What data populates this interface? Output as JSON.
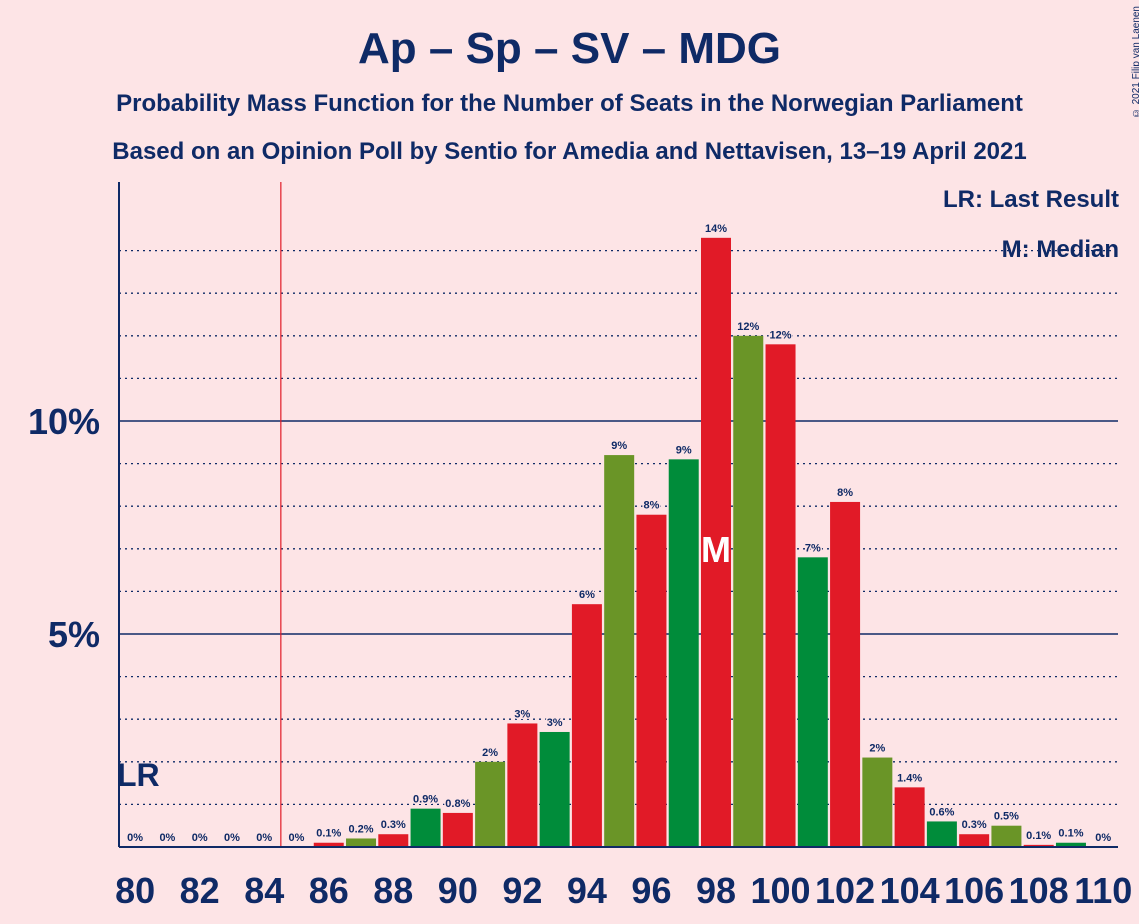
{
  "header": {
    "title": "Ap – Sp – SV – MDG",
    "subtitle_1": "Probability Mass Function for the Number of Seats in the Norwegian Parliament",
    "subtitle_2": "Based on an Opinion Poll by Sentio for Amedia and Nettavisen, 13–19 April 2021",
    "copyright": "© 2021 Filip van Laenen"
  },
  "legend": {
    "last_result": "LR: Last Result",
    "median": "M: Median"
  },
  "markers": {
    "last_result_label": "LR",
    "median_label": "M",
    "last_result_seats": 85,
    "median_seats": 98
  },
  "colors": {
    "background": "#FDE4E6",
    "text": "#0F2A66",
    "red": "#E11A27",
    "green_dark": "#008C3A",
    "green_olive": "#6A9527",
    "last_result_line": "#E11A27"
  },
  "chart_data": {
    "type": "bar",
    "xlabel": "",
    "ylabel": "",
    "ylim": [
      0,
      15.5
    ],
    "yticks": [
      {
        "value": 5,
        "label": "5%"
      },
      {
        "value": 10,
        "label": "10%"
      }
    ],
    "xticks": [
      80,
      82,
      84,
      86,
      88,
      90,
      92,
      94,
      96,
      98,
      100,
      102,
      104,
      106,
      108,
      110
    ],
    "bars": [
      {
        "seats": 80,
        "value": 0,
        "label": "0%",
        "color": "red"
      },
      {
        "seats": 81,
        "value": 0,
        "label": "0%",
        "color": "green_dark"
      },
      {
        "seats": 82,
        "value": 0,
        "label": "0%",
        "color": "green_olive"
      },
      {
        "seats": 83,
        "value": 0,
        "label": "0%",
        "color": "red"
      },
      {
        "seats": 84,
        "value": 0,
        "label": "0%",
        "color": "green_dark"
      },
      {
        "seats": 85,
        "value": 0,
        "label": "0%",
        "color": "green_olive"
      },
      {
        "seats": 86,
        "value": 0.1,
        "label": "0.1%",
        "color": "red"
      },
      {
        "seats": 87,
        "value": 0.2,
        "label": "0.2%",
        "color": "green_olive"
      },
      {
        "seats": 88,
        "value": 0.3,
        "label": "0.3%",
        "color": "red"
      },
      {
        "seats": 89,
        "value": 0.9,
        "label": "0.9%",
        "color": "green_dark"
      },
      {
        "seats": 90,
        "value": 0.8,
        "label": "0.8%",
        "color": "red"
      },
      {
        "seats": 91,
        "value": 2.0,
        "label": "2%",
        "color": "green_olive"
      },
      {
        "seats": 92,
        "value": 2.9,
        "label": "3%",
        "color": "red"
      },
      {
        "seats": 93,
        "value": 2.7,
        "label": "3%",
        "color": "green_dark"
      },
      {
        "seats": 94,
        "value": 5.7,
        "label": "6%",
        "color": "red"
      },
      {
        "seats": 95,
        "value": 9.2,
        "label": "9%",
        "color": "green_olive"
      },
      {
        "seats": 96,
        "value": 7.8,
        "label": "8%",
        "color": "red"
      },
      {
        "seats": 97,
        "value": 9.1,
        "label": "9%",
        "color": "green_dark"
      },
      {
        "seats": 98,
        "value": 14.3,
        "label": "14%",
        "color": "red"
      },
      {
        "seats": 99,
        "value": 12.0,
        "label": "12%",
        "color": "green_olive"
      },
      {
        "seats": 100,
        "value": 11.8,
        "label": "12%",
        "color": "red"
      },
      {
        "seats": 101,
        "value": 6.8,
        "label": "7%",
        "color": "green_dark"
      },
      {
        "seats": 102,
        "value": 8.1,
        "label": "8%",
        "color": "red"
      },
      {
        "seats": 103,
        "value": 2.1,
        "label": "2%",
        "color": "green_olive"
      },
      {
        "seats": 104,
        "value": 1.4,
        "label": "1.4%",
        "color": "red"
      },
      {
        "seats": 105,
        "value": 0.6,
        "label": "0.6%",
        "color": "green_dark"
      },
      {
        "seats": 106,
        "value": 0.3,
        "label": "0.3%",
        "color": "red"
      },
      {
        "seats": 107,
        "value": 0.5,
        "label": "0.5%",
        "color": "green_olive"
      },
      {
        "seats": 108,
        "value": 0.05,
        "label": "0.1%",
        "color": "red"
      },
      {
        "seats": 109,
        "value": 0.1,
        "label": "0.1%",
        "color": "green_dark"
      },
      {
        "seats": 110,
        "value": 0,
        "label": "0%",
        "color": "red"
      }
    ]
  }
}
